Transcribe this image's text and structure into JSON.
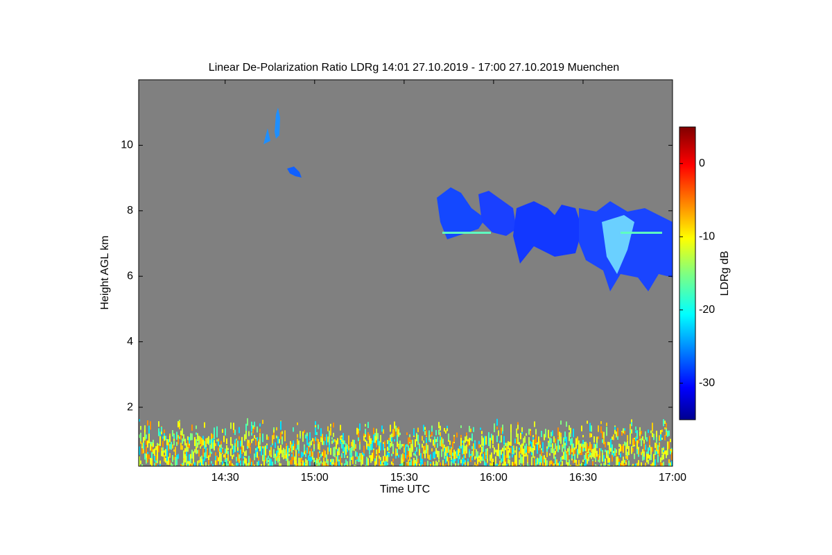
{
  "chart_data": {
    "type": "heatmap",
    "title": "Linear De-Polarization Ratio LDRg   14:01 27.10.2019 - 17:00 27.10.2019 Muenchen",
    "x_label": "Time UTC",
    "y_label": "Height AGL km",
    "xlim": [
      "14:01",
      "17:00"
    ],
    "xticks": [
      "14:30",
      "15:00",
      "15:30",
      "16:00",
      "16:30",
      "17:00"
    ],
    "ylim": [
      0.2,
      12
    ],
    "yticks": [
      2,
      4,
      6,
      8,
      10
    ],
    "colorbar": {
      "label": "LDRg dB",
      "lim": [
        -35,
        5
      ],
      "ticks": [
        0,
        -10,
        -20,
        -30
      ],
      "colormap": "jet"
    }
  }
}
